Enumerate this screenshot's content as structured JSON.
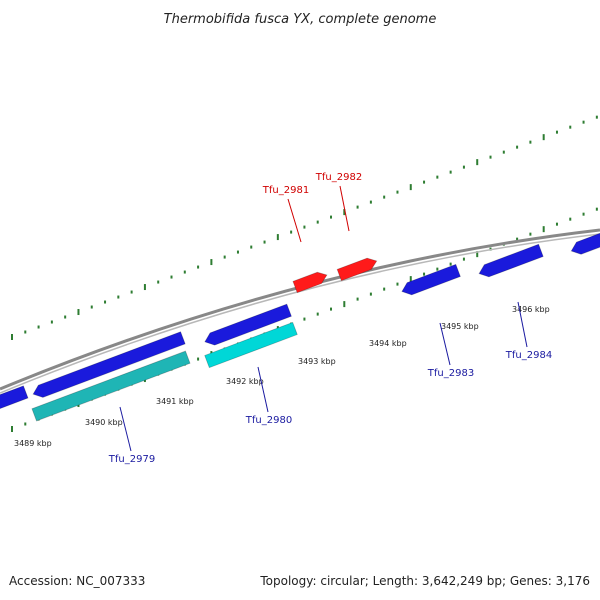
{
  "title": "Thermobifida fusca YX, complete genome",
  "footer": {
    "accession": "Accession: NC_007333",
    "topology": "Topology: circular; Length: 3,642,249 bp; Genes: 3,176"
  },
  "colors": {
    "backbone": "#888888",
    "tick": "#2e7d32",
    "forward_gene": "#ff1a1a",
    "forward_label": "#d00000",
    "reverse_gene": "#1a1adc",
    "reverse_label": "#1a1aa0",
    "cyan_bar": "#00d7d7",
    "teal_bar": "#1fb5b5"
  },
  "scale": {
    "labels": [
      "3489 kbp",
      "3490 kbp",
      "3491 kbp",
      "3492 kbp",
      "3493 kbp",
      "3494 kbp",
      "3495 kbp",
      "3496 kbp"
    ]
  },
  "genes": [
    {
      "name": "Tfu_2979",
      "strand": "reverse"
    },
    {
      "name": "Tfu_2980",
      "strand": "reverse"
    },
    {
      "name": "Tfu_2981",
      "strand": "forward"
    },
    {
      "name": "Tfu_2982",
      "strand": "forward"
    },
    {
      "name": "Tfu_2983",
      "strand": "reverse"
    },
    {
      "name": "Tfu_2984",
      "strand": "reverse"
    }
  ]
}
